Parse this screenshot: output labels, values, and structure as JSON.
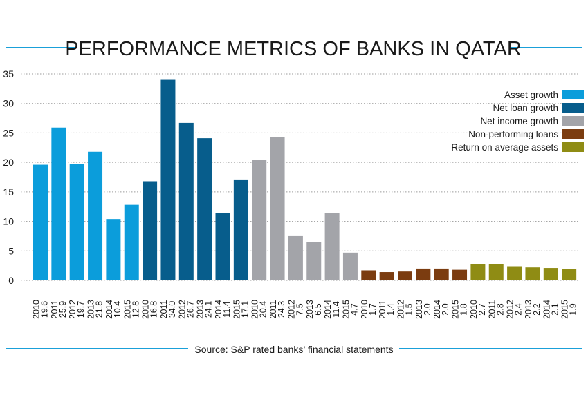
{
  "colors": {
    "asset": "#0b9ddb",
    "loan": "#075d8c",
    "income": "#a3a4a9",
    "npl": "#7b3c10",
    "roaa": "#8f8c14",
    "rule": "#1aa0d9",
    "grid": "#9a9a9a",
    "text": "#1a1a1a"
  },
  "chart_data": {
    "type": "bar",
    "title": "PERFORMANCE METRICS OF BANKS IN QATAR",
    "source": "Source: S&P rated banks’ financial statements",
    "ylim": [
      0,
      35
    ],
    "yticks": [
      0,
      5,
      10,
      15,
      20,
      25,
      30,
      35
    ],
    "grid": true,
    "legend_position": "top-right",
    "series": [
      {
        "name": "Asset growth",
        "color_key": "asset",
        "categories": [
          "2010",
          "2011",
          "2012",
          "2013",
          "2014",
          "2015"
        ],
        "values": [
          19.6,
          25.9,
          19.7,
          21.8,
          10.4,
          12.8
        ]
      },
      {
        "name": "Net loan growth",
        "color_key": "loan",
        "categories": [
          "2010",
          "2011",
          "2012",
          "2013",
          "2014",
          "2015"
        ],
        "values": [
          16.8,
          34.0,
          26.7,
          24.1,
          11.4,
          17.1
        ]
      },
      {
        "name": "Net income growth",
        "color_key": "income",
        "categories": [
          "2010",
          "2011",
          "2012",
          "2013",
          "2014",
          "2015"
        ],
        "values": [
          20.4,
          24.3,
          7.5,
          6.5,
          11.4,
          4.7
        ]
      },
      {
        "name": "Non-performing loans",
        "color_key": "npl",
        "categories": [
          "2010",
          "2011",
          "2012",
          "2013",
          "2014",
          "2015"
        ],
        "values": [
          1.7,
          1.4,
          1.5,
          2.0,
          2.0,
          1.8
        ]
      },
      {
        "name": "Return on average assets",
        "color_key": "roaa",
        "categories": [
          "2010",
          "2011",
          "2012",
          "2013",
          "2014",
          "2015"
        ],
        "values": [
          2.7,
          2.8,
          2.4,
          2.2,
          2.1,
          1.9
        ]
      }
    ]
  }
}
